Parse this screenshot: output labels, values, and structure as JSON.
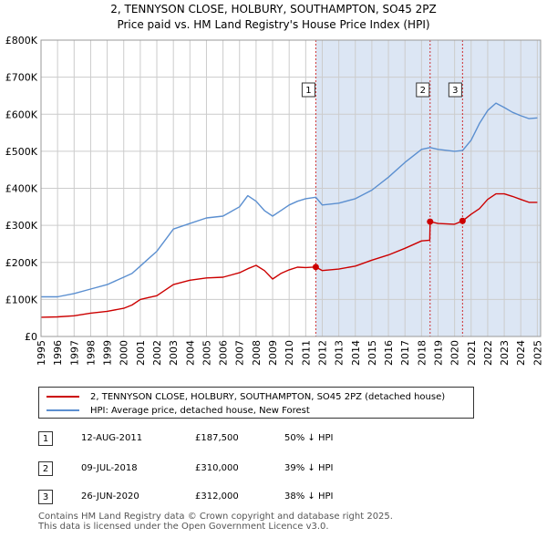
{
  "title_line1": "2, TENNYSON CLOSE, HOLBURY, SOUTHAMPTON, SO45 2PZ",
  "title_line2": "Price paid vs. HM Land Registry's House Price Index (HPI)",
  "colors": {
    "property": "#cc0000",
    "hpi": "#5b8fd0",
    "shade": "#dce6f4",
    "vline": "#cc0000"
  },
  "chart_data": {
    "type": "line",
    "title": "2, TENNYSON CLOSE, HOLBURY, SOUTHAMPTON, SO45 2PZ — Price paid vs. HM Land Registry's House Price Index (HPI)",
    "xlim": [
      1995.0,
      2025.2
    ],
    "ylim": [
      0,
      800000
    ],
    "y_ticks": [
      0,
      100000,
      200000,
      300000,
      400000,
      500000,
      600000,
      700000,
      800000
    ],
    "y_tick_labels": [
      "£0",
      "£100K",
      "£200K",
      "£300K",
      "£400K",
      "£500K",
      "£600K",
      "£700K",
      "£800K"
    ],
    "x_ticks": [
      1995,
      1996,
      1997,
      1998,
      1999,
      2000,
      2001,
      2002,
      2003,
      2004,
      2005,
      2006,
      2007,
      2008,
      2009,
      2010,
      2011,
      2012,
      2013,
      2014,
      2015,
      2016,
      2017,
      2018,
      2019,
      2020,
      2021,
      2022,
      2023,
      2024,
      2025
    ],
    "x_tick_labels": [
      "1995",
      "1996",
      "1997",
      "1998",
      "1999",
      "2000",
      "2001",
      "2002",
      "2003",
      "2004",
      "2005",
      "2006",
      "2007",
      "2008",
      "2009",
      "2010",
      "2011",
      "2012",
      "2013",
      "2014",
      "2015",
      "2016",
      "2017",
      "2018",
      "2019",
      "2020",
      "2021",
      "2022",
      "2023",
      "2024",
      "2025"
    ],
    "shaded_period": [
      2011.61,
      2025.2
    ],
    "series": [
      {
        "name": "2, TENNYSON CLOSE, HOLBURY, SOUTHAMPTON, SO45 2PZ (detached house)",
        "color": "#cc0000",
        "x": [
          1995.0,
          1996.0,
          1997.0,
          1998.0,
          1999.0,
          2000.0,
          2000.5,
          2001.0,
          2001.5,
          2002.0,
          2002.5,
          2003.0,
          2004.0,
          2005.0,
          2006.0,
          2007.0,
          2007.5,
          2008.0,
          2008.5,
          2009.0,
          2009.5,
          2010.0,
          2010.5,
          2011.0,
          2011.61,
          2012.0,
          2013.0,
          2014.0,
          2015.0,
          2016.0,
          2017.0,
          2018.0,
          2018.5,
          2018.52,
          2019.0,
          2020.0,
          2020.48,
          2021.0,
          2021.5,
          2022.0,
          2022.5,
          2023.0,
          2023.5,
          2024.0,
          2024.5,
          2025.0
        ],
        "y": [
          52000,
          53000,
          56000,
          63000,
          68000,
          76000,
          85000,
          100000,
          105000,
          110000,
          125000,
          140000,
          152000,
          158000,
          160000,
          172000,
          183000,
          192000,
          178000,
          155000,
          170000,
          180000,
          187000,
          186000,
          187500,
          178000,
          182000,
          190000,
          206000,
          220000,
          238000,
          258000,
          260000,
          310000,
          305000,
          303000,
          312000,
          330000,
          345000,
          370000,
          385000,
          385000,
          378000,
          370000,
          362000,
          362000
        ]
      },
      {
        "name": "HPI: Average price, detached house, New Forest",
        "color": "#5b8fd0",
        "x": [
          1995.0,
          1996.0,
          1997.0,
          1998.0,
          1999.0,
          2000.0,
          2000.5,
          2001.0,
          2001.5,
          2002.0,
          2002.5,
          2003.0,
          2004.0,
          2005.0,
          2006.0,
          2007.0,
          2007.5,
          2008.0,
          2008.5,
          2009.0,
          2009.5,
          2010.0,
          2010.5,
          2011.0,
          2011.61,
          2012.0,
          2013.0,
          2014.0,
          2015.0,
          2016.0,
          2017.0,
          2018.0,
          2018.52,
          2019.0,
          2020.0,
          2020.48,
          2021.0,
          2021.5,
          2022.0,
          2022.5,
          2023.0,
          2023.5,
          2024.0,
          2024.5,
          2025.0
        ],
        "y": [
          107000,
          107000,
          116000,
          128000,
          140000,
          160000,
          170000,
          190000,
          210000,
          230000,
          260000,
          290000,
          305000,
          320000,
          325000,
          350000,
          380000,
          365000,
          340000,
          325000,
          340000,
          355000,
          365000,
          372000,
          376000,
          355000,
          360000,
          372000,
          395000,
          430000,
          470000,
          505000,
          510000,
          505000,
          500000,
          502000,
          530000,
          575000,
          610000,
          630000,
          618000,
          605000,
          596000,
          588000,
          590000
        ]
      }
    ],
    "sales": [
      {
        "label": "1",
        "x": 2011.61,
        "y": 187500
      },
      {
        "label": "2",
        "x": 2018.52,
        "y": 310000
      },
      {
        "label": "3",
        "x": 2020.48,
        "y": 312000
      }
    ]
  },
  "legend": {
    "property_label": "2, TENNYSON CLOSE, HOLBURY, SOUTHAMPTON, SO45 2PZ (detached house)",
    "hpi_label": "HPI: Average price, detached house, New Forest"
  },
  "sales_table": [
    {
      "num": "1",
      "date": "12-AUG-2011",
      "price": "£187,500",
      "pct": "50% ↓ HPI"
    },
    {
      "num": "2",
      "date": "09-JUL-2018",
      "price": "£310,000",
      "pct": "39% ↓ HPI"
    },
    {
      "num": "3",
      "date": "26-JUN-2020",
      "price": "£312,000",
      "pct": "38% ↓ HPI"
    }
  ],
  "footer": {
    "line1": "Contains HM Land Registry data © Crown copyright and database right 2025.",
    "line2": "This data is licensed under the Open Government Licence v3.0."
  }
}
